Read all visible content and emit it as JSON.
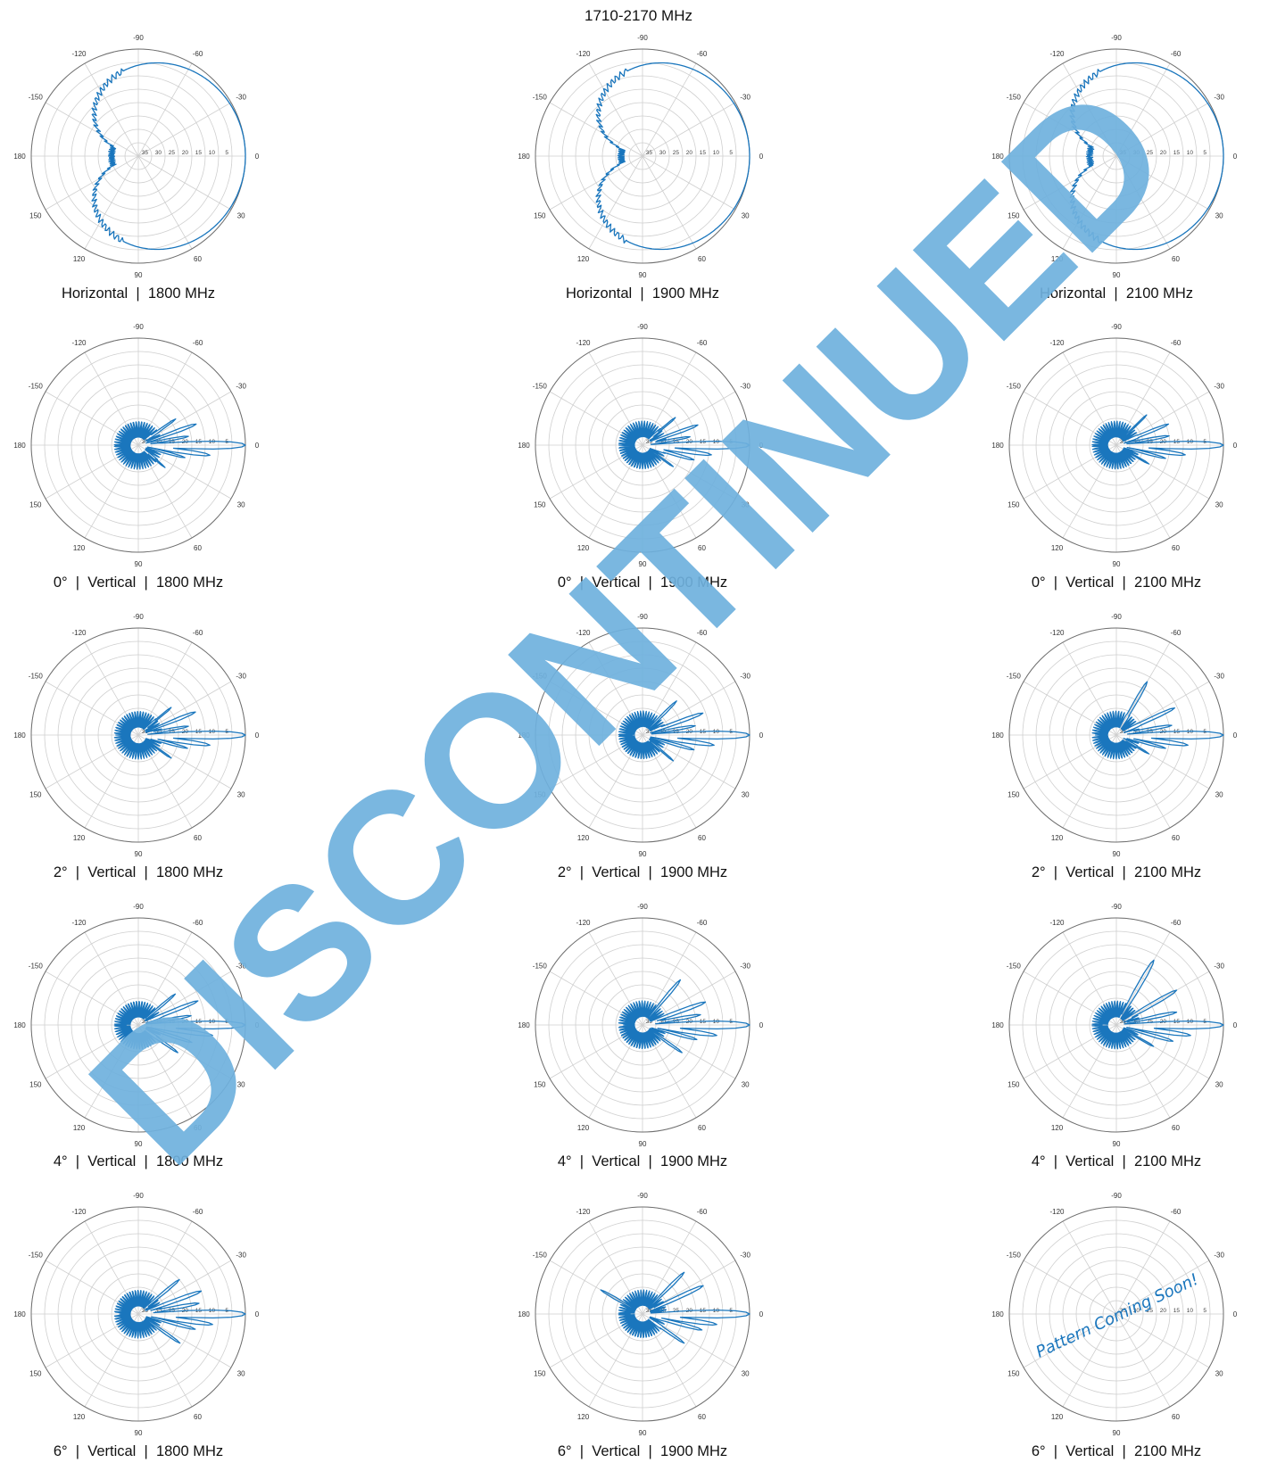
{
  "page_title": "1710-2170 MHz",
  "polar_axes": {
    "angle_ticks": [
      "0",
      "30",
      "60",
      "90",
      "120",
      "150",
      "180",
      "-150",
      "-120",
      "-90",
      "-60",
      "-30"
    ],
    "radial_ticks": [
      "5",
      "10",
      "15",
      "20",
      "25",
      "30",
      "35"
    ]
  },
  "colors": {
    "pattern_line": "#1a76bd",
    "grid": "#cfcfcf",
    "frame": "#6e6e6e",
    "watermark": "#6fb1de"
  },
  "watermark": "DISCONTINUED",
  "captions": [
    "Horizontal  |  1800 MHz",
    "Horizontal  |  1900 MHz",
    "Horizontal  |  2100 MHz",
    "0°  |  Vertical  |  1800 MHz",
    "0°  |  Vertical  |  1900 MHz",
    "0°  |  Vertical  |  2100 MHz",
    "2°  |  Vertical  |  1800 MHz",
    "2°  |  Vertical  |  1900 MHz",
    "2°  |  Vertical  |  2100 MHz",
    "4°  |  Vertical  |  1800 MHz",
    "4°  |  Vertical  |  1900 MHz",
    "4°  |  Vertical  |  2100 MHz",
    "6°  |  Vertical  |  1800 MHz",
    "6°  |  Vertical  |  1900 MHz",
    "6°  |  Vertical  |  2100 MHz"
  ],
  "chart_data": [
    {
      "type": "polar",
      "kind": "horizontal",
      "angles_deg": [
        0,
        30,
        60,
        90,
        120,
        150,
        180,
        -150,
        -120,
        -90,
        -60,
        -30
      ],
      "attenuation_db": [
        0,
        1,
        3,
        7,
        16,
        25,
        30,
        25,
        16,
        7,
        3,
        1
      ]
    },
    {
      "type": "polar",
      "kind": "horizontal",
      "angles_deg": [
        0,
        30,
        60,
        90,
        120,
        150,
        180,
        -150,
        -120,
        -90,
        -60,
        -30
      ],
      "attenuation_db": [
        0,
        1,
        3,
        8,
        18,
        27,
        32,
        27,
        18,
        8,
        3,
        1
      ]
    },
    {
      "type": "polar",
      "kind": "horizontal",
      "angles_deg": [
        0,
        30,
        60,
        90,
        120,
        150,
        180,
        -150,
        -120,
        -90,
        -60,
        -30
      ],
      "attenuation_db": [
        0,
        1,
        3,
        9,
        22,
        28,
        30,
        28,
        22,
        9,
        3,
        1
      ]
    },
    {
      "type": "polar",
      "kind": "vertical",
      "main_lobe_deg": 0,
      "main_lobe_db": 0,
      "side_lobes": [
        {
          "angle": -20,
          "db": 17
        },
        {
          "angle": -35,
          "db": 23
        },
        {
          "angle": 8,
          "db": 13
        },
        {
          "angle": 15,
          "db": 22
        },
        {
          "angle": 40,
          "db": 27
        },
        {
          "angle": -10,
          "db": 21
        }
      ]
    },
    {
      "type": "polar",
      "kind": "vertical",
      "main_lobe_deg": 0,
      "main_lobe_db": 0,
      "side_lobes": [
        {
          "angle": -20,
          "db": 18
        },
        {
          "angle": -40,
          "db": 24
        },
        {
          "angle": 8,
          "db": 14
        },
        {
          "angle": 16,
          "db": 20
        },
        {
          "angle": 35,
          "db": 26
        },
        {
          "angle": -10,
          "db": 22
        }
      ]
    },
    {
      "type": "polar",
      "kind": "vertical",
      "main_lobe_deg": 0,
      "main_lobe_db": 0,
      "side_lobes": [
        {
          "angle": -22,
          "db": 19
        },
        {
          "angle": -45,
          "db": 24
        },
        {
          "angle": 8,
          "db": 14
        },
        {
          "angle": 15,
          "db": 21
        },
        {
          "angle": 30,
          "db": 26
        },
        {
          "angle": -10,
          "db": 20
        }
      ]
    },
    {
      "type": "polar",
      "kind": "vertical",
      "main_lobe_deg": 0,
      "main_lobe_db": 0,
      "side_lobes": [
        {
          "angle": -22,
          "db": 17
        },
        {
          "angle": -40,
          "db": 24
        },
        {
          "angle": 8,
          "db": 13
        },
        {
          "angle": 15,
          "db": 21
        },
        {
          "angle": 35,
          "db": 25
        },
        {
          "angle": -10,
          "db": 21
        }
      ]
    },
    {
      "type": "polar",
      "kind": "vertical",
      "main_lobe_deg": 0,
      "main_lobe_db": 0,
      "side_lobes": [
        {
          "angle": -20,
          "db": 16
        },
        {
          "angle": -45,
          "db": 22
        },
        {
          "angle": 8,
          "db": 13
        },
        {
          "angle": 16,
          "db": 20
        },
        {
          "angle": 40,
          "db": 25
        },
        {
          "angle": -10,
          "db": 20
        }
      ]
    },
    {
      "type": "polar",
      "kind": "vertical",
      "main_lobe_deg": 0,
      "main_lobe_db": 0,
      "side_lobes": [
        {
          "angle": -25,
          "db": 16
        },
        {
          "angle": -60,
          "db": 17
        },
        {
          "angle": 8,
          "db": 13
        },
        {
          "angle": 15,
          "db": 21
        },
        {
          "angle": 30,
          "db": 26
        },
        {
          "angle": -10,
          "db": 19
        }
      ]
    },
    {
      "type": "polar",
      "kind": "vertical",
      "main_lobe_deg": 0,
      "main_lobe_db": 0,
      "side_lobes": [
        {
          "angle": -22,
          "db": 16
        },
        {
          "angle": -40,
          "db": 22
        },
        {
          "angle": 8,
          "db": 12
        },
        {
          "angle": 18,
          "db": 19
        },
        {
          "angle": 35,
          "db": 22
        },
        {
          "angle": -10,
          "db": 20
        }
      ]
    },
    {
      "type": "polar",
      "kind": "vertical",
      "main_lobe_deg": 0,
      "main_lobe_db": 0,
      "side_lobes": [
        {
          "angle": -20,
          "db": 15
        },
        {
          "angle": -50,
          "db": 18
        },
        {
          "angle": 8,
          "db": 12
        },
        {
          "angle": 15,
          "db": 19
        },
        {
          "angle": 35,
          "db": 22
        },
        {
          "angle": -10,
          "db": 18
        }
      ]
    },
    {
      "type": "polar",
      "kind": "vertical",
      "main_lobe_deg": 0,
      "main_lobe_db": 0,
      "side_lobes": [
        {
          "angle": -30,
          "db": 14
        },
        {
          "angle": -60,
          "db": 12
        },
        {
          "angle": 8,
          "db": 12
        },
        {
          "angle": 16,
          "db": 18
        },
        {
          "angle": 30,
          "db": 24
        },
        {
          "angle": -12,
          "db": 17
        }
      ]
    },
    {
      "type": "polar",
      "kind": "vertical",
      "main_lobe_deg": 0,
      "main_lobe_db": 0,
      "side_lobes": [
        {
          "angle": -20,
          "db": 15
        },
        {
          "angle": -40,
          "db": 20
        },
        {
          "angle": 8,
          "db": 12
        },
        {
          "angle": 15,
          "db": 18
        },
        {
          "angle": 35,
          "db": 21
        },
        {
          "angle": -10,
          "db": 17
        }
      ]
    },
    {
      "type": "polar",
      "kind": "vertical",
      "main_lobe_deg": 0,
      "main_lobe_db": 0,
      "side_lobes": [
        {
          "angle": -25,
          "db": 15
        },
        {
          "angle": -45,
          "db": 18
        },
        {
          "angle": 8,
          "db": 12
        },
        {
          "angle": 15,
          "db": 17
        },
        {
          "angle": 35,
          "db": 21
        },
        {
          "angle": -150,
          "db": 22
        }
      ]
    },
    {
      "type": "polar",
      "kind": "empty",
      "annotation": "Pattern Coming Soon!"
    }
  ]
}
